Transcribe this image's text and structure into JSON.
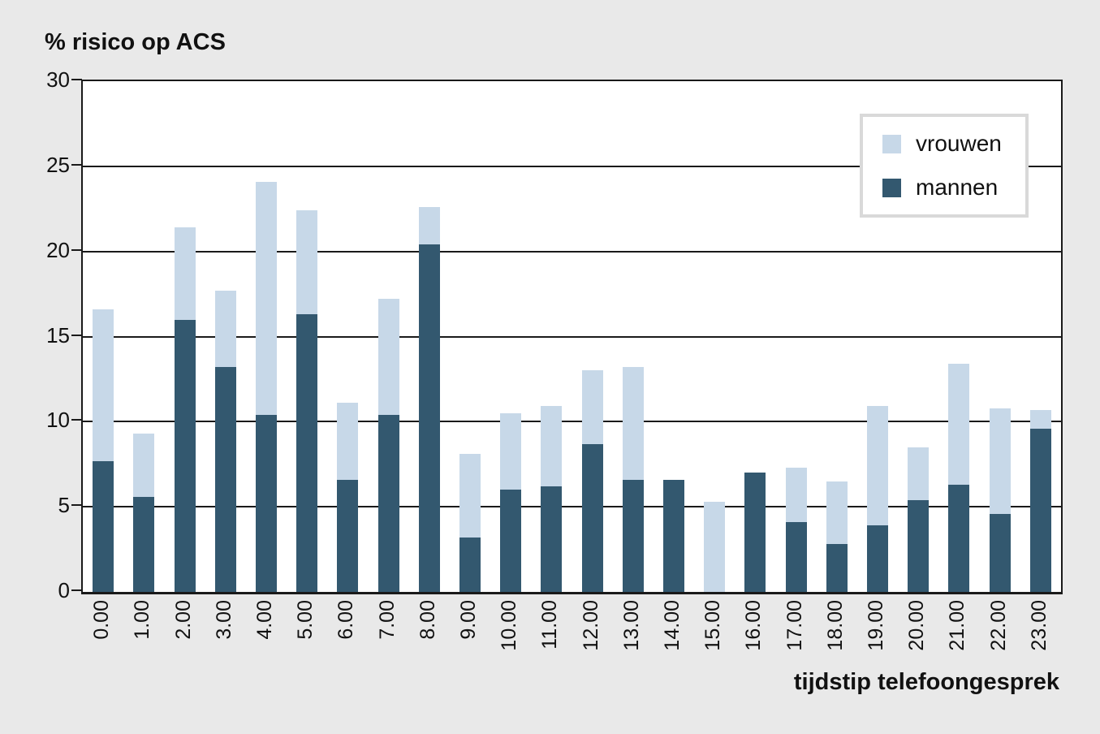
{
  "title": "% risico op ACS",
  "x_axis_title": "tijdstip telefoongesprek",
  "colors": {
    "vrouwen": "#c7d8e8",
    "mannen": "#33586f",
    "background": "#e9e9e9",
    "plot_background": "#ffffff",
    "axis": "#1a1a1a",
    "legend_border": "#d9d9d9"
  },
  "legend": {
    "items": [
      {
        "label": "vrouwen",
        "color": "#c7d8e8"
      },
      {
        "label": "mannen",
        "color": "#33586f"
      }
    ]
  },
  "chart_data": {
    "type": "bar",
    "stacked": true,
    "title": "% risico op ACS",
    "xlabel": "tijdstip telefoongesprek",
    "ylabel": "% risico op ACS",
    "ylim": [
      0,
      30
    ],
    "y_ticks": [
      0,
      5,
      10,
      15,
      20,
      25,
      30
    ],
    "grid": true,
    "legend_position": "top-right",
    "categories": [
      "0.00",
      "1.00",
      "2.00",
      "3.00",
      "4.00",
      "5.00",
      "6.00",
      "7.00",
      "8.00",
      "9.00",
      "10.00",
      "11.00",
      "12.00",
      "13.00",
      "14.00",
      "15.00",
      "16.00",
      "17.00",
      "18.00",
      "19.00",
      "20.00",
      "21.00",
      "22.00",
      "23.00"
    ],
    "series": [
      {
        "name": "mannen",
        "color": "#33586f",
        "values": [
          7.7,
          5.6,
          16.0,
          13.2,
          10.4,
          16.3,
          6.6,
          10.4,
          20.4,
          3.2,
          6.0,
          6.2,
          8.7,
          6.6,
          6.6,
          0,
          7.0,
          4.1,
          2.8,
          3.9,
          5.4,
          6.3,
          4.6,
          9.6
        ]
      },
      {
        "name": "vrouwen",
        "color": "#c7d8e8",
        "values": [
          8.9,
          3.7,
          5.4,
          4.5,
          13.7,
          6.1,
          4.5,
          6.8,
          2.2,
          4.9,
          4.5,
          4.7,
          4.3,
          6.6,
          0,
          5.3,
          0,
          3.2,
          3.7,
          7.0,
          3.1,
          7.1,
          6.2,
          1.1
        ]
      }
    ],
    "totals": [
      16.6,
      9.3,
      21.4,
      17.7,
      24.1,
      22.4,
      11.1,
      17.2,
      22.6,
      8.1,
      10.5,
      10.9,
      13.0,
      13.2,
      6.6,
      5.3,
      7.0,
      7.3,
      6.5,
      10.9,
      8.5,
      13.4,
      10.8,
      10.7
    ]
  }
}
